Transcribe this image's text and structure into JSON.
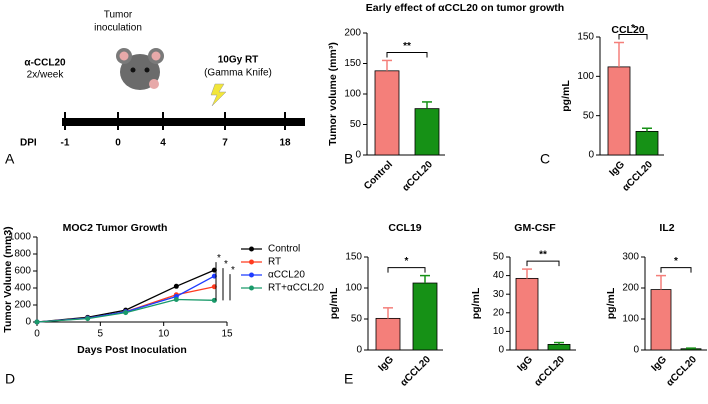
{
  "panels": [
    "A",
    "B",
    "C",
    "D",
    "E"
  ],
  "timeline": {
    "inoculation": [
      "Tumor",
      "inoculation"
    ],
    "drug": "α-CCL20",
    "schedule": "2x/week",
    "rt": "10Gy RT",
    "rt_device": "(Gamma Knife)",
    "axis_label": "DPI",
    "days": [
      "-1",
      "0",
      "4",
      "7",
      "18"
    ]
  },
  "chart_data": [
    {
      "type": "bar",
      "title": "Early effect of αCCL20 on tumor growth",
      "ylabel": "Tumor volume (mm³)",
      "categories": [
        "Control",
        "αCCL20"
      ],
      "values": [
        138,
        76
      ],
      "errors": [
        17,
        11
      ],
      "colors": [
        "#f47f7a",
        "#169116"
      ],
      "significance": "**",
      "ylim": [
        0,
        200
      ],
      "yticks": [
        0,
        50,
        100,
        150,
        200
      ]
    },
    {
      "type": "bar",
      "title": "CCL20",
      "ylabel": "pg/mL",
      "categories": [
        "IgG",
        "αCCL20"
      ],
      "values": [
        112,
        30
      ],
      "errors": [
        31,
        4
      ],
      "colors": [
        "#f47f7a",
        "#169116"
      ],
      "significance": "*",
      "ylim": [
        0,
        150
      ],
      "yticks": [
        0,
        50,
        100,
        150
      ]
    },
    {
      "type": "line",
      "title": "MOC2 Tumor Growth",
      "xlabel": "Days Post Inoculation",
      "ylabel": "Tumor Volume (mm3)",
      "x": [
        0,
        4,
        7,
        11,
        14
      ],
      "xlim": [
        0,
        15
      ],
      "xticks": [
        0,
        5,
        10,
        15
      ],
      "ylim": [
        0,
        1000
      ],
      "yticks": [
        0,
        200,
        400,
        600,
        800,
        1000
      ],
      "series": [
        {
          "name": "Control",
          "color": "#000000",
          "values": [
            0,
            55,
            140,
            420,
            610
          ]
        },
        {
          "name": "RT",
          "color": "#ff3b1f",
          "values": [
            0,
            45,
            120,
            320,
            415
          ]
        },
        {
          "name": "αCCL20",
          "color": "#1f3cff",
          "values": [
            0,
            45,
            120,
            300,
            540
          ]
        },
        {
          "name": "RT+αCCL20",
          "color": "#1a9a6a",
          "values": [
            0,
            40,
            110,
            265,
            255
          ]
        }
      ],
      "annotations": [
        "*",
        "*",
        "*"
      ]
    },
    {
      "type": "bar",
      "title": "CCL19",
      "ylabel": "pg/mL",
      "categories": [
        "IgG",
        "αCCL20"
      ],
      "values": [
        51,
        108
      ],
      "errors": [
        17,
        12
      ],
      "colors": [
        "#f47f7a",
        "#169116"
      ],
      "significance": "*",
      "ylim": [
        0,
        150
      ],
      "yticks": [
        0,
        50,
        100,
        150
      ]
    },
    {
      "type": "bar",
      "title": "GM-CSF",
      "ylabel": "pg/mL",
      "categories": [
        "IgG",
        "αCCL20"
      ],
      "values": [
        38.5,
        3
      ],
      "errors": [
        5,
        1
      ],
      "colors": [
        "#f47f7a",
        "#169116"
      ],
      "significance": "**",
      "ylim": [
        0,
        50
      ],
      "yticks": [
        0,
        10,
        20,
        30,
        40,
        50
      ]
    },
    {
      "type": "bar",
      "title": "IL2",
      "ylabel": "pg/mL",
      "categories": [
        "IgG",
        "αCCL20"
      ],
      "values": [
        195,
        4
      ],
      "errors": [
        45,
        2
      ],
      "colors": [
        "#f47f7a",
        "#169116"
      ],
      "significance": "*",
      "ylim": [
        0,
        300
      ],
      "yticks": [
        0,
        100,
        200,
        300
      ]
    }
  ]
}
